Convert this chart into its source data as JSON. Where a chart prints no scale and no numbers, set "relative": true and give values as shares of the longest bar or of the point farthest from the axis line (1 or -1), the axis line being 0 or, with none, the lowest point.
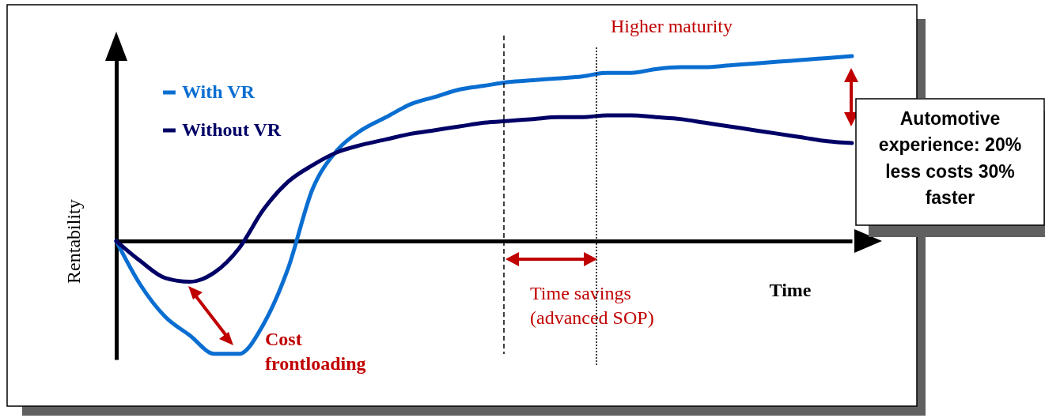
{
  "chart_data": {
    "type": "line",
    "relative": true,
    "xlabel": "Time",
    "ylabel": "Rentability",
    "legend": "top left",
    "grid": false,
    "marker": "none",
    "line_style": "solid",
    "categories": [
      null,
      null,
      null,
      null,
      null,
      null,
      null,
      null,
      null,
      null,
      null,
      null,
      null,
      null,
      null,
      null,
      null,
      null,
      null,
      null,
      null,
      null,
      null,
      null,
      null,
      null,
      null,
      null,
      null,
      null,
      null
    ],
    "series": [
      {
        "name": "With VR",
        "color": "#0a6ed1",
        "values": [
          0,
          -0.24,
          -0.41,
          -0.51,
          -0.61,
          -0.61,
          -0.45,
          -0.15,
          0.28,
          0.49,
          0.6,
          0.67,
          0.74,
          0.78,
          0.82,
          0.84,
          0.86,
          0.87,
          0.88,
          0.89,
          0.91,
          0.91,
          0.93,
          0.94,
          0.94,
          0.95,
          0.96,
          0.97,
          0.98,
          0.99,
          1
        ]
      },
      {
        "name": "Without VR",
        "color": "#000066",
        "values": [
          0,
          -0.11,
          -0.2,
          -0.22,
          -0.17,
          -0.04,
          0.17,
          0.32,
          0.41,
          0.48,
          0.52,
          0.55,
          0.58,
          0.6,
          0.62,
          0.64,
          0.65,
          0.66,
          0.67,
          0.67,
          0.68,
          0.68,
          0.67,
          0.66,
          0.64,
          0.62,
          0.6,
          0.58,
          0.56,
          0.54,
          0.53
        ]
      }
    ],
    "annotations": [
      "Higher maturity",
      "Time savings (advanced SOP)",
      "Cost frontloading",
      "Automotive experience: 20% less costs 30% faster"
    ]
  }
}
